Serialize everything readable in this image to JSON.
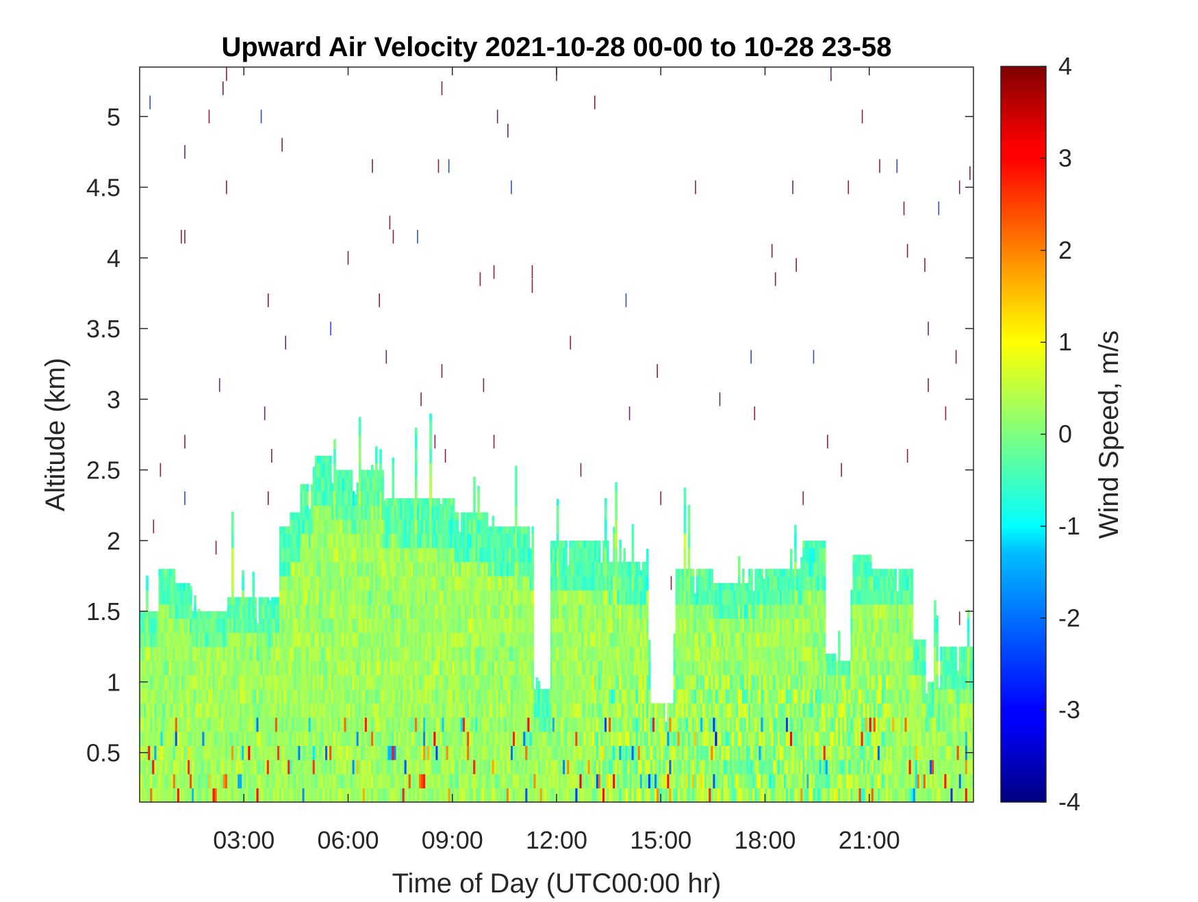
{
  "chart_data": {
    "type": "heatmap",
    "title": "Upward Air Velocity 2021-10-28 00-00 to 10-28 23-58",
    "xlabel": "Time of Day (UTC00:00 hr)",
    "ylabel": "Altitude (km)",
    "xlim": [
      0,
      24
    ],
    "ylim": [
      0.15,
      5.35
    ],
    "x_ticks": [
      3,
      6,
      9,
      12,
      15,
      18,
      21
    ],
    "x_tick_labels": [
      "03:00",
      "06:00",
      "09:00",
      "12:00",
      "15:00",
      "18:00",
      "21:00"
    ],
    "y_ticks": [
      0.5,
      1,
      1.5,
      2,
      2.5,
      3,
      3.5,
      4,
      4.5,
      5
    ],
    "y_tick_labels": [
      "0.5",
      "1",
      "1.5",
      "2",
      "2.5",
      "3",
      "3.5",
      "4",
      "4.5",
      "5"
    ],
    "grid": false,
    "colorbar": {
      "label": "Wind Speed, m/s",
      "colormap": "jet",
      "clim": [
        -4,
        4
      ],
      "ticks": [
        -4,
        -3,
        -2,
        -1,
        0,
        1,
        2,
        3,
        4
      ],
      "tick_labels": [
        "-4",
        "-3",
        "-2",
        "-1",
        "0",
        "1",
        "2",
        "3",
        "4"
      ]
    },
    "echo_top_segments": [
      {
        "x0": 0.0,
        "x1": 0.5,
        "top_km": 1.5
      },
      {
        "x0": 0.5,
        "x1": 1.0,
        "top_km": 1.8
      },
      {
        "x0": 1.0,
        "x1": 1.5,
        "top_km": 1.7
      },
      {
        "x0": 1.5,
        "x1": 2.5,
        "top_km": 1.5
      },
      {
        "x0": 2.5,
        "x1": 4.0,
        "top_km": 1.6
      },
      {
        "x0": 4.0,
        "x1": 4.3,
        "top_km": 2.1
      },
      {
        "x0": 4.3,
        "x1": 4.6,
        "top_km": 2.2
      },
      {
        "x0": 4.6,
        "x1": 5.0,
        "top_km": 2.4
      },
      {
        "x0": 5.0,
        "x1": 5.6,
        "top_km": 2.6
      },
      {
        "x0": 5.6,
        "x1": 7.0,
        "top_km": 2.5
      },
      {
        "x0": 7.0,
        "x1": 8.5,
        "top_km": 2.3
      },
      {
        "x0": 8.5,
        "x1": 9.0,
        "top_km": 2.3
      },
      {
        "x0": 9.0,
        "x1": 10.0,
        "top_km": 2.2
      },
      {
        "x0": 10.0,
        "x1": 11.3,
        "top_km": 2.1
      },
      {
        "x0": 11.3,
        "x1": 11.8,
        "top_km": 0.95
      },
      {
        "x0": 11.8,
        "x1": 13.5,
        "top_km": 2.0
      },
      {
        "x0": 13.5,
        "x1": 14.6,
        "top_km": 1.85
      },
      {
        "x0": 14.6,
        "x1": 15.4,
        "top_km": 0.85
      },
      {
        "x0": 15.4,
        "x1": 16.5,
        "top_km": 1.8
      },
      {
        "x0": 16.5,
        "x1": 17.5,
        "top_km": 1.7
      },
      {
        "x0": 17.5,
        "x1": 19.0,
        "top_km": 1.8
      },
      {
        "x0": 19.0,
        "x1": 19.7,
        "top_km": 2.0
      },
      {
        "x0": 19.7,
        "x1": 20.0,
        "top_km": 1.2
      },
      {
        "x0": 20.0,
        "x1": 20.5,
        "top_km": 1.15
      },
      {
        "x0": 20.5,
        "x1": 21.0,
        "top_km": 1.9
      },
      {
        "x0": 21.0,
        "x1": 22.2,
        "top_km": 1.8
      },
      {
        "x0": 22.2,
        "x1": 22.6,
        "top_km": 1.3
      },
      {
        "x0": 22.6,
        "x1": 23.0,
        "top_km": 1.0
      },
      {
        "x0": 23.0,
        "x1": 24.0,
        "top_km": 1.25
      }
    ],
    "scattered_returns_km": [
      [
        0.3,
        5.1
      ],
      [
        0.4,
        2.1
      ],
      [
        0.6,
        2.5
      ],
      [
        1.2,
        4.15
      ],
      [
        1.3,
        4.15
      ],
      [
        1.3,
        4.75
      ],
      [
        1.3,
        2.7
      ],
      [
        1.3,
        2.3
      ],
      [
        2.0,
        5.0
      ],
      [
        2.2,
        1.95
      ],
      [
        2.3,
        3.1
      ],
      [
        2.4,
        5.2
      ],
      [
        2.5,
        4.5
      ],
      [
        2.5,
        5.3
      ],
      [
        3.5,
        5.0
      ],
      [
        3.6,
        2.9
      ],
      [
        3.7,
        2.3
      ],
      [
        3.7,
        3.7
      ],
      [
        3.8,
        2.6
      ],
      [
        4.1,
        4.8
      ],
      [
        4.2,
        3.4
      ],
      [
        5.5,
        3.5
      ],
      [
        6.0,
        4.0
      ],
      [
        6.7,
        4.65
      ],
      [
        6.9,
        3.7
      ],
      [
        7.1,
        3.3
      ],
      [
        7.2,
        4.25
      ],
      [
        7.3,
        4.15
      ],
      [
        8.0,
        4.15
      ],
      [
        8.1,
        3.0
      ],
      [
        8.5,
        2.7
      ],
      [
        8.6,
        4.65
      ],
      [
        8.7,
        3.2
      ],
      [
        8.7,
        5.2
      ],
      [
        8.8,
        2.6
      ],
      [
        8.9,
        4.65
      ],
      [
        9.8,
        3.85
      ],
      [
        9.9,
        3.1
      ],
      [
        10.2,
        3.9
      ],
      [
        10.2,
        2.7
      ],
      [
        10.3,
        5.0
      ],
      [
        10.6,
        4.9
      ],
      [
        10.7,
        4.5
      ],
      [
        11.3,
        3.9
      ],
      [
        11.3,
        3.8
      ],
      [
        12.0,
        5.3
      ],
      [
        12.4,
        3.4
      ],
      [
        12.7,
        2.5
      ],
      [
        13.1,
        5.1
      ],
      [
        14.0,
        3.7
      ],
      [
        14.1,
        2.9
      ],
      [
        14.9,
        3.2
      ],
      [
        15.0,
        2.3
      ],
      [
        15.3,
        1.7
      ],
      [
        16.0,
        4.5
      ],
      [
        16.7,
        3.0
      ],
      [
        17.6,
        3.3
      ],
      [
        17.7,
        2.9
      ],
      [
        18.2,
        4.05
      ],
      [
        18.3,
        3.85
      ],
      [
        18.8,
        4.5
      ],
      [
        18.9,
        3.95
      ],
      [
        19.1,
        2.3
      ],
      [
        19.4,
        3.3
      ],
      [
        19.8,
        2.7
      ],
      [
        19.9,
        5.3
      ],
      [
        20.2,
        2.5
      ],
      [
        20.4,
        4.5
      ],
      [
        20.8,
        5.0
      ],
      [
        21.3,
        4.65
      ],
      [
        21.8,
        4.65
      ],
      [
        22.0,
        4.35
      ],
      [
        22.1,
        4.05
      ],
      [
        22.1,
        2.6
      ],
      [
        22.6,
        3.95
      ],
      [
        22.7,
        3.5
      ],
      [
        22.7,
        3.1
      ],
      [
        23.0,
        4.35
      ],
      [
        23.2,
        2.9
      ],
      [
        23.5,
        3.3
      ],
      [
        23.6,
        4.5
      ],
      [
        23.6,
        1.45
      ],
      [
        23.9,
        4.6
      ]
    ]
  }
}
